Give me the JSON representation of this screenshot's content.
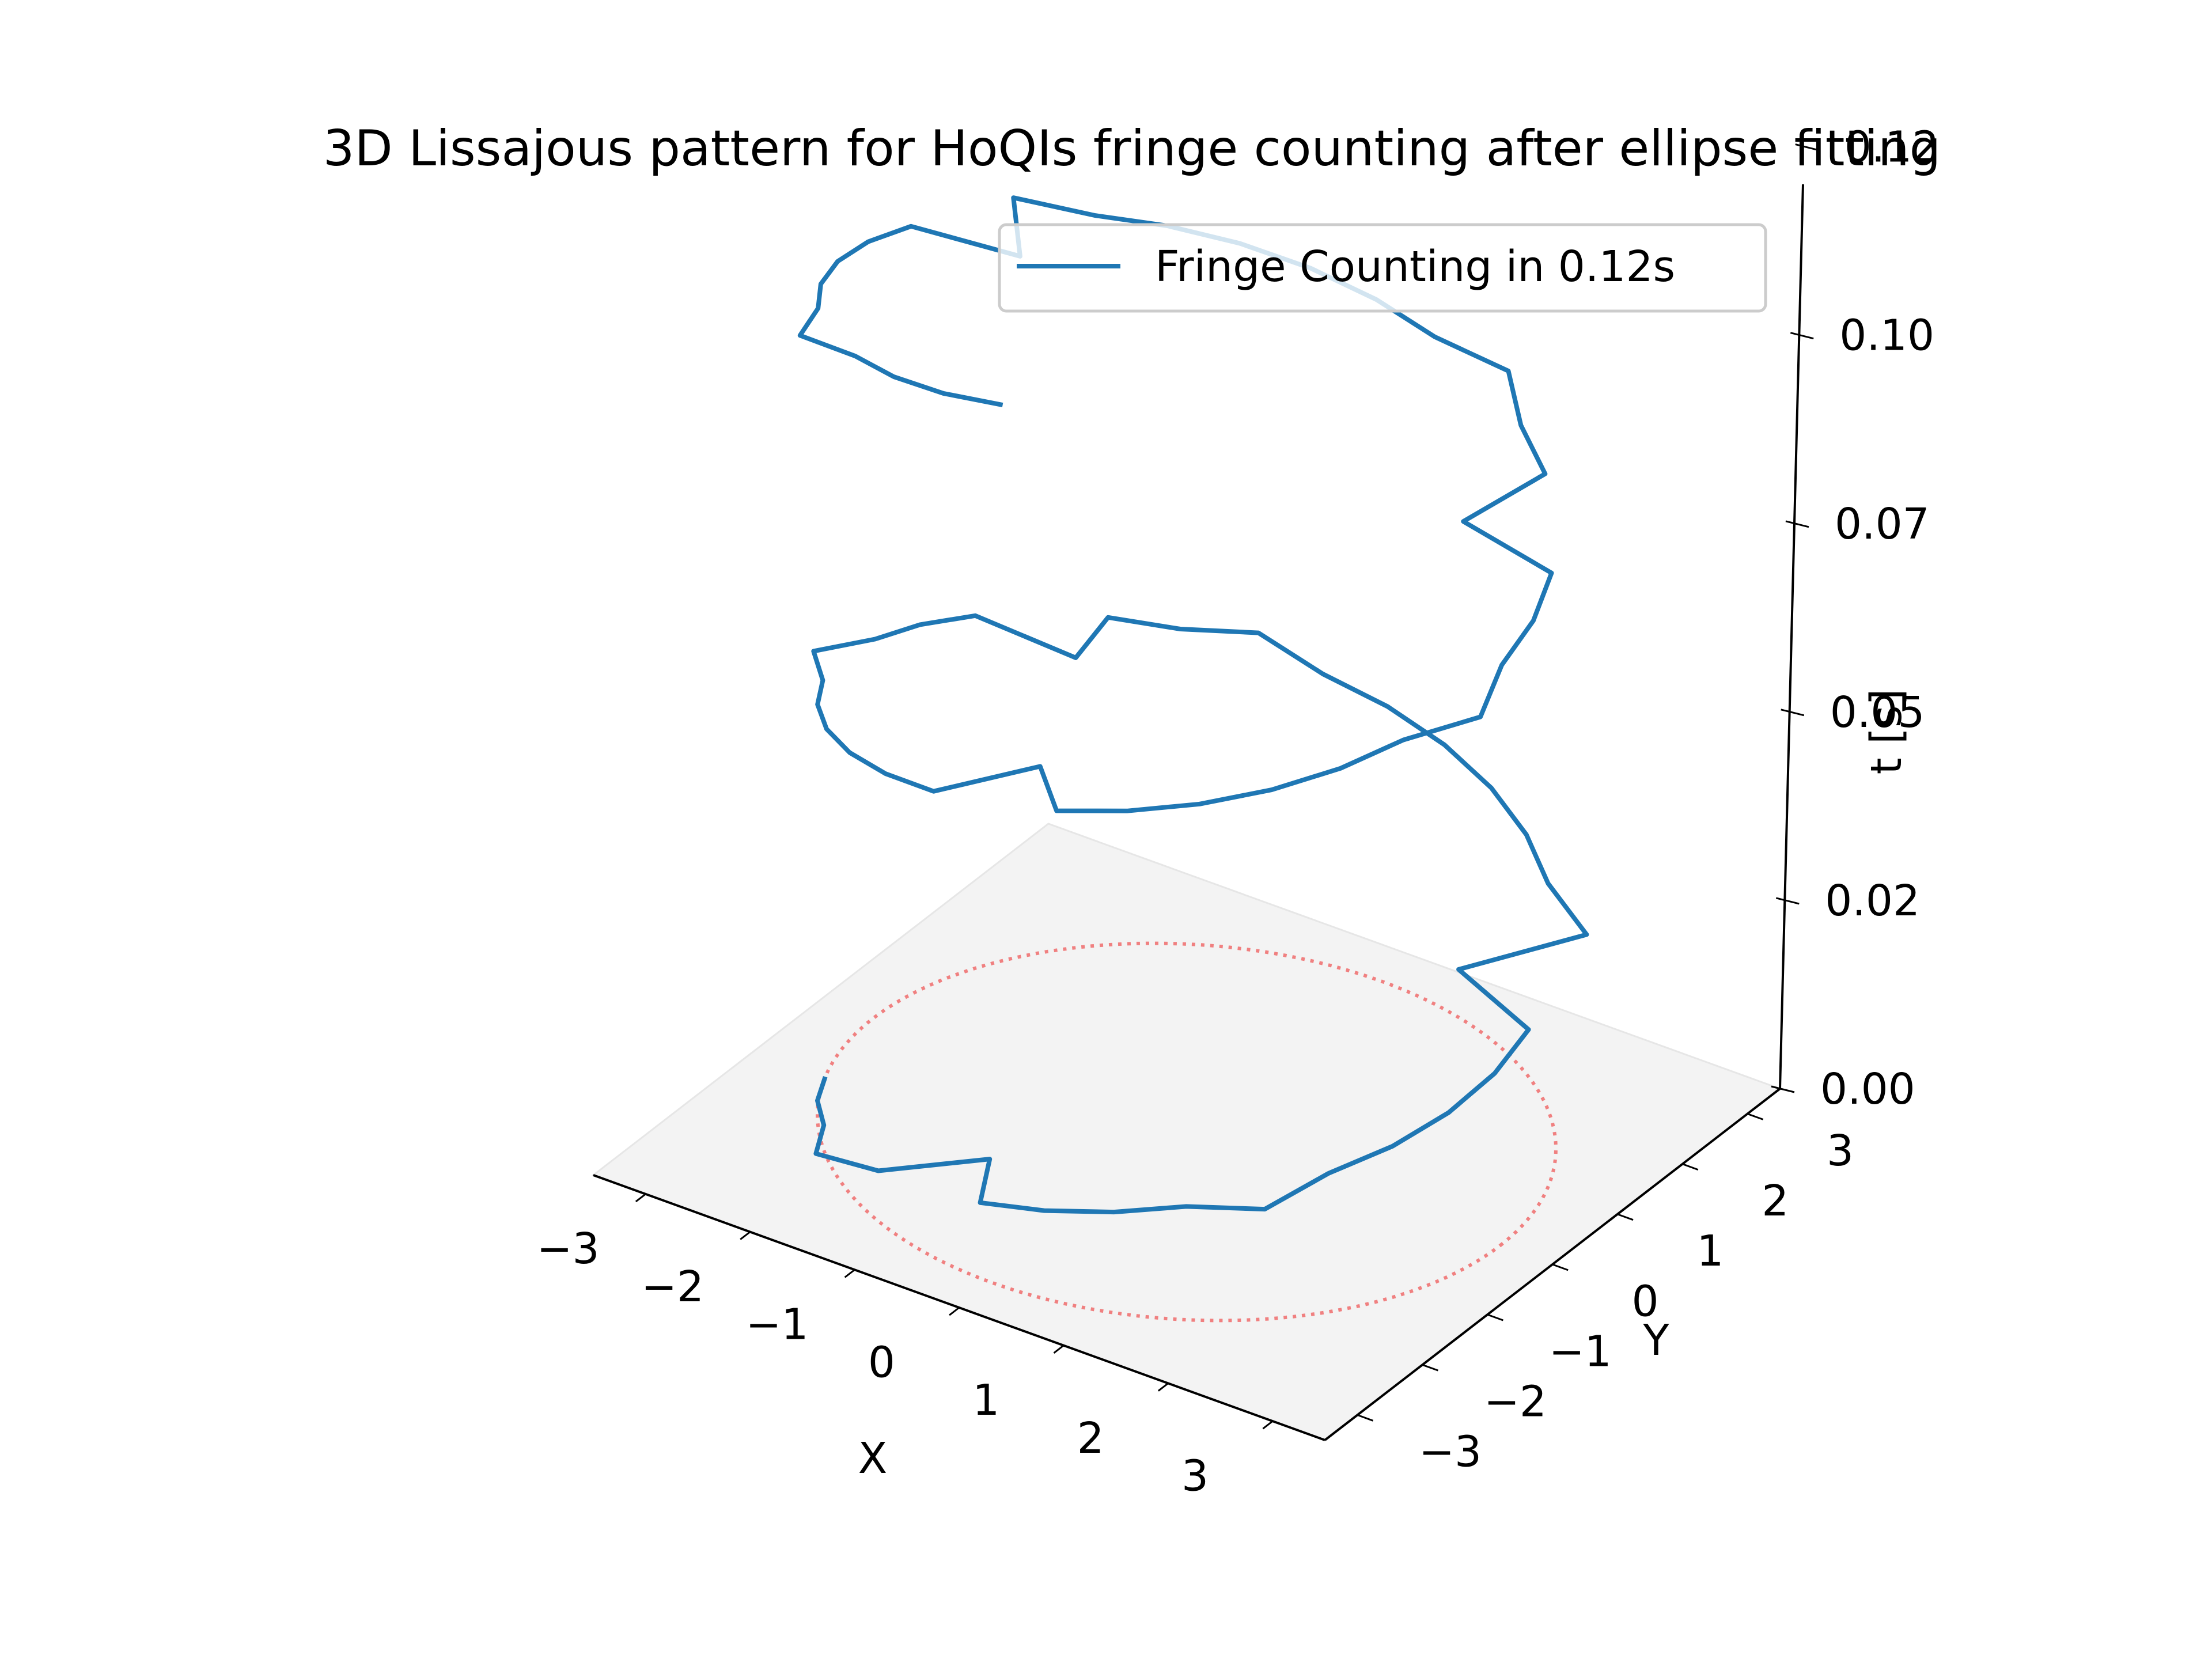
{
  "chart_data": {
    "type": "line",
    "projection": "3d",
    "title": "3D Lissajous pattern for HoQIs fringe counting after ellipse fitting",
    "xlabel": "X",
    "ylabel": "Y",
    "zlabel": "t [s]",
    "xlim": [
      -3.5,
      3.5
    ],
    "ylim": [
      -3.5,
      3.5
    ],
    "zlim": [
      0,
      0.12
    ],
    "x_ticks": [
      "−3",
      "−2",
      "−1",
      "0",
      "1",
      "2",
      "3"
    ],
    "y_ticks": [
      "−3",
      "−2",
      "−1",
      "0",
      "1",
      "2",
      "3"
    ],
    "z_ticks": [
      "0.00",
      "0.02",
      "0.05",
      "0.07",
      "0.10",
      "0.12"
    ],
    "x_tick_values": [
      -3,
      -2,
      -1,
      0,
      1,
      2,
      3
    ],
    "y_tick_values": [
      -3,
      -2,
      -1,
      0,
      1,
      2,
      3
    ],
    "z_tick_values": [
      0,
      0.025,
      0.05,
      0.075,
      0.1,
      0.125
    ],
    "grid": false,
    "legend": {
      "position": "top-right",
      "entries": [
        "Fringe Counting in 0.12s"
      ]
    },
    "series": [
      {
        "name": "Fringe Counting in 0.12s",
        "style": "solid",
        "color": "#1f77b4",
        "radius": 3.0,
        "t_start": 0.0,
        "t_end": 0.12,
        "turns": 2.2,
        "start_angle_deg": 200,
        "jitter_amplitude": 0.25
      },
      {
        "name": "",
        "style": "dotted",
        "color": "#f08080",
        "radius": 3.0,
        "t": 0.0
      }
    ]
  }
}
